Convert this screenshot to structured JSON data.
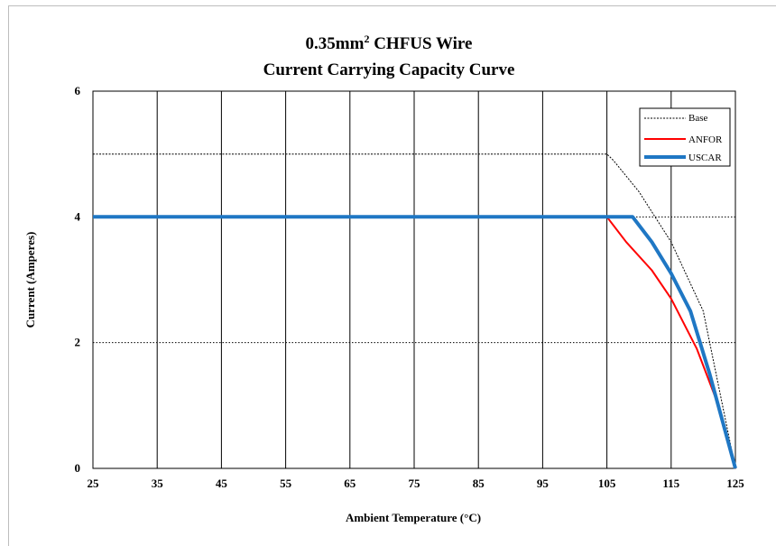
{
  "chart_data": {
    "type": "line",
    "title": "0.35mm² CHFUS Wire",
    "title_parts": {
      "pre": "0.35mm",
      "sup": "2",
      "post": " CHFUS Wire"
    },
    "subtitle": "Current Carrying Capacity Curve",
    "xlabel": "Ambient  Temperature  (°C)",
    "ylabel": "Current  (Amperes)",
    "xlim": [
      25,
      125
    ],
    "ylim": [
      0,
      6
    ],
    "x_ticks": [
      25,
      35,
      45,
      55,
      65,
      75,
      85,
      95,
      105,
      115,
      125
    ],
    "y_ticks": [
      0,
      2,
      4,
      6
    ],
    "grid": "vertical solid lines, horizontal dotted lines",
    "legend_position": "top-right",
    "series": [
      {
        "name": "Base",
        "color": "#000000",
        "style": "dotted",
        "points": [
          [
            25,
            5
          ],
          [
            105,
            5
          ],
          [
            106,
            4.9
          ],
          [
            110,
            4.4
          ],
          [
            115,
            3.6
          ],
          [
            120,
            2.5
          ],
          [
            125,
            0
          ]
        ]
      },
      {
        "name": "ANFOR",
        "color": "#ff0000",
        "style": "solid",
        "points": [
          [
            25,
            4
          ],
          [
            105,
            4
          ],
          [
            108,
            3.6
          ],
          [
            112,
            3.15
          ],
          [
            115,
            2.7
          ],
          [
            119,
            1.9
          ],
          [
            122,
            1.1
          ],
          [
            125,
            0
          ]
        ]
      },
      {
        "name": "USCAR",
        "color": "#1f77c4",
        "style": "solid-thick",
        "points": [
          [
            25,
            4
          ],
          [
            109,
            4
          ],
          [
            112,
            3.6
          ],
          [
            115,
            3.1
          ],
          [
            118,
            2.5
          ],
          [
            121,
            1.5
          ],
          [
            125,
            0
          ]
        ]
      }
    ]
  }
}
